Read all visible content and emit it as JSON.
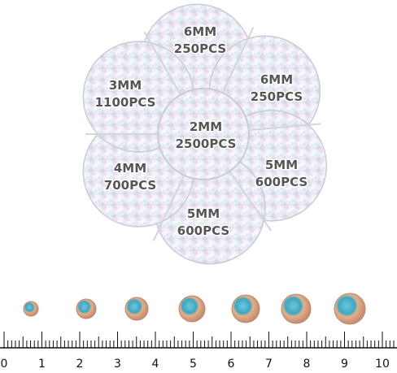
{
  "compartments": [
    {
      "size": "6MM",
      "count": "250PCS"
    },
    {
      "size": "6MM",
      "count": "250PCS"
    },
    {
      "size": "5MM",
      "count": "600PCS"
    },
    {
      "size": "5MM",
      "count": "600PCS"
    },
    {
      "size": "4MM",
      "count": "700PCS"
    },
    {
      "size": "3MM",
      "count": "1100PCS"
    }
  ],
  "center": {
    "size": "2MM",
    "count": "2500PCS"
  },
  "ruler": {
    "labels": [
      "0",
      "1",
      "2",
      "3",
      "4",
      "5",
      "6",
      "7",
      "8",
      "9",
      "10"
    ]
  }
}
